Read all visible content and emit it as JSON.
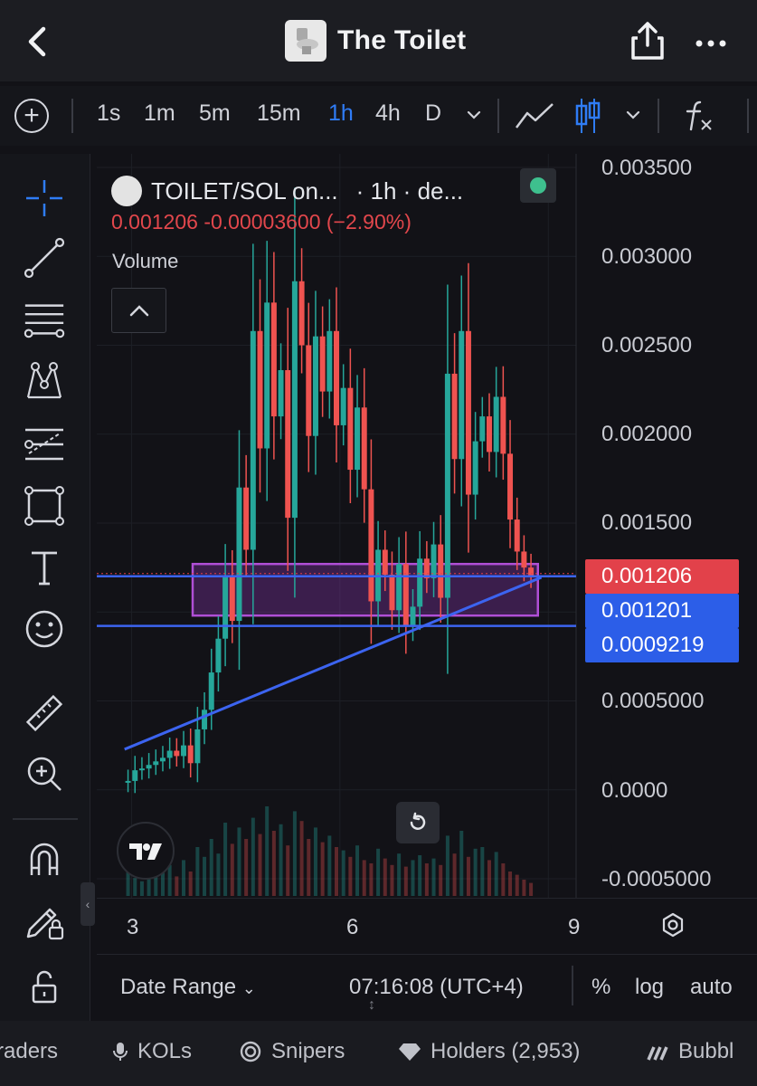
{
  "header": {
    "title": "The Toilet",
    "back_icon": "chevron-left-icon",
    "share_icon": "share-icon",
    "more_icon": "more-dots-icon"
  },
  "toolbar": {
    "timeframes": [
      "1s",
      "1m",
      "5m",
      "15m",
      "1h",
      "4h",
      "D"
    ],
    "active_timeframe": "1h",
    "accent": "#2f7cf6"
  },
  "chart_header": {
    "pair": "TOILET/SOL on...",
    "interval": "· 1h · de...",
    "ohlc": "0.001206  -0.00003600 (−2.90%)",
    "volume_label": "Volume",
    "status_color": "#3ec08e"
  },
  "chart_data": {
    "type": "candlestick",
    "title": "TOILET/SOL",
    "ylabel": "",
    "ylim": [
      -0.0005,
      0.0035
    ],
    "y_ticks": [
      "0.003500",
      "0.003000",
      "0.002500",
      "0.002000",
      "0.001500",
      "0.0005000",
      "0.0000",
      "-0.0005000"
    ],
    "x_ticks": [
      "3",
      "6",
      "9"
    ],
    "price_labels": [
      {
        "value": "0.001206",
        "color": "#e2414a"
      },
      {
        "value": "0.001201",
        "color": "#2c5ee8"
      },
      {
        "value": "0.0009219",
        "color": "#2c5ee8"
      }
    ],
    "horizontal_lines": [
      0.001201,
      0.0009219
    ],
    "zone": {
      "from": 0.00098,
      "to": 0.00127
    },
    "trendline": {
      "from": [
        2.9,
        0.000228
      ],
      "to": [
        8.9,
        0.001195
      ]
    },
    "series": [
      {
        "name": "price",
        "x_start": 2.95,
        "x_step": 0.1,
        "close": [
          5e-05,
          0.00011,
          0.00012,
          0.00014,
          0.00016,
          0.00018,
          0.00022,
          0.00019,
          0.00025,
          0.00015,
          0.00034,
          0.00045,
          0.00066,
          0.00085,
          0.0012,
          0.00095,
          0.0017,
          0.00135,
          0.00258,
          0.00192,
          0.00274,
          0.0021,
          0.00236,
          0.00153,
          0.00286,
          0.0025,
          0.00199,
          0.00255,
          0.00224,
          0.00258,
          0.00205,
          0.00226,
          0.0018,
          0.00215,
          0.00169,
          0.00106,
          0.00135,
          0.00121,
          0.00101,
          0.00127,
          0.00092,
          0.00103,
          0.0013,
          0.00119,
          0.00138,
          0.00108,
          0.00234,
          0.00186,
          0.00258,
          0.00166,
          0.00196,
          0.0021,
          0.0019,
          0.00221,
          0.00189,
          0.00152,
          0.00134,
          0.00125,
          0.0012
        ]
      }
    ],
    "volume_note": "volume bars along bottom",
    "up_color": "#26a69a",
    "down_color": "#ef5350",
    "grid": true
  },
  "footer": {
    "date_range": "Date Range",
    "clock": "07:16:08 (UTC+4)",
    "percent": "%",
    "log": "log",
    "auto": "auto"
  },
  "tabs": {
    "traders": "raders",
    "kols": "KOLs",
    "snipers": "Snipers",
    "holders": "Holders (2,953)",
    "bubble": "Bubbl"
  }
}
